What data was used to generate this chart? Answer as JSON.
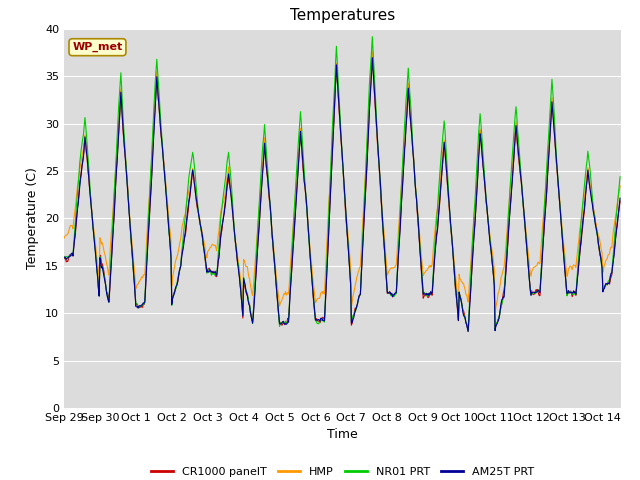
{
  "title": "Temperatures",
  "xlabel": "Time",
  "ylabel": "Temperature (C)",
  "ylim": [
    0,
    40
  ],
  "yticks": [
    0,
    5,
    10,
    15,
    20,
    25,
    30,
    35,
    40
  ],
  "bg_color": "#dcdcdc",
  "fig_color": "#ffffff",
  "legend_labels": [
    "CR1000 panelT",
    "HMP",
    "NR01 PRT",
    "AM25T PRT"
  ],
  "line_colors": [
    "#cc0000",
    "#ff9900",
    "#00cc00",
    "#000099"
  ],
  "wp_met_label": "WP_met",
  "title_fontsize": 11,
  "label_fontsize": 9,
  "tick_fontsize": 8,
  "day_peaks": [
    29,
    33,
    35,
    25,
    25,
    28,
    29,
    36,
    37,
    34,
    28,
    29,
    30,
    32,
    25,
    26
  ],
  "night_mins": [
    16,
    11,
    11,
    15,
    14,
    9,
    9,
    9,
    12,
    12,
    12,
    8,
    12,
    12,
    12,
    14
  ]
}
